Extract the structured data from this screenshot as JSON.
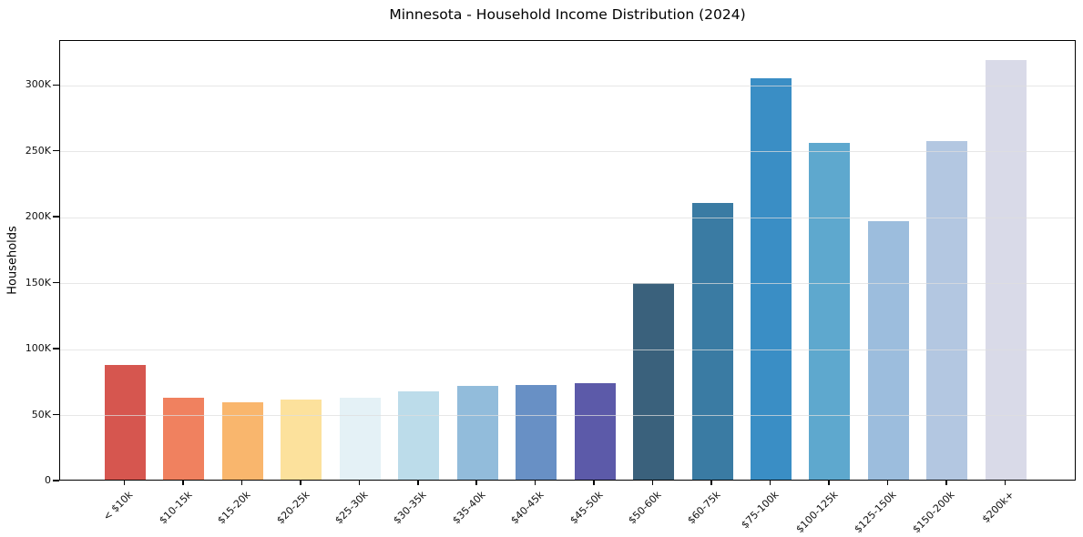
{
  "figure": {
    "title": "Minnesota - Household Income Distribution (2024)"
  },
  "chart_data": {
    "type": "bar",
    "title": "Minnesota - Household Income Distribution (2024)",
    "xlabel": "",
    "ylabel": "Households",
    "categories": [
      "< $10k",
      "$10-15k",
      "$15-20k",
      "$20-25k",
      "$25-30k",
      "$30-35k",
      "$35-40k",
      "$40-45k",
      "$45-50k",
      "$50-60k",
      "$60-75k",
      "$75-100k",
      "$100-125k",
      "$125-150k",
      "$150-200k",
      "$200k+"
    ],
    "values": [
      87000,
      62000,
      59000,
      61000,
      62000,
      67000,
      71000,
      72000,
      73000,
      149000,
      210000,
      304000,
      255000,
      196000,
      257000,
      318000
    ],
    "bar_colors": [
      "#d6564f",
      "#f0815f",
      "#f9b66d",
      "#fce19c",
      "#e4f1f6",
      "#bcdcea",
      "#92bcdb",
      "#6890c5",
      "#5c5aa9",
      "#3a617c",
      "#3a7ba3",
      "#3a8ec5",
      "#5ea8ce",
      "#9cbddd",
      "#b3c7e1",
      "#d9dae8"
    ],
    "ylim": [
      0,
      334000
    ],
    "yticks": [
      {
        "value": 0,
        "label": "0"
      },
      {
        "value": 50000,
        "label": "50K"
      },
      {
        "value": 100000,
        "label": "100K"
      },
      {
        "value": 150000,
        "label": "150K"
      },
      {
        "value": 200000,
        "label": "200K"
      },
      {
        "value": 250000,
        "label": "250K"
      },
      {
        "value": 300000,
        "label": "300K"
      }
    ],
    "grid": {
      "axis": "y",
      "color": "#ededed",
      "drawn_over_bars": true
    },
    "legend": "none",
    "plot_border_color": "#000000",
    "background_color": "#ffffff"
  }
}
